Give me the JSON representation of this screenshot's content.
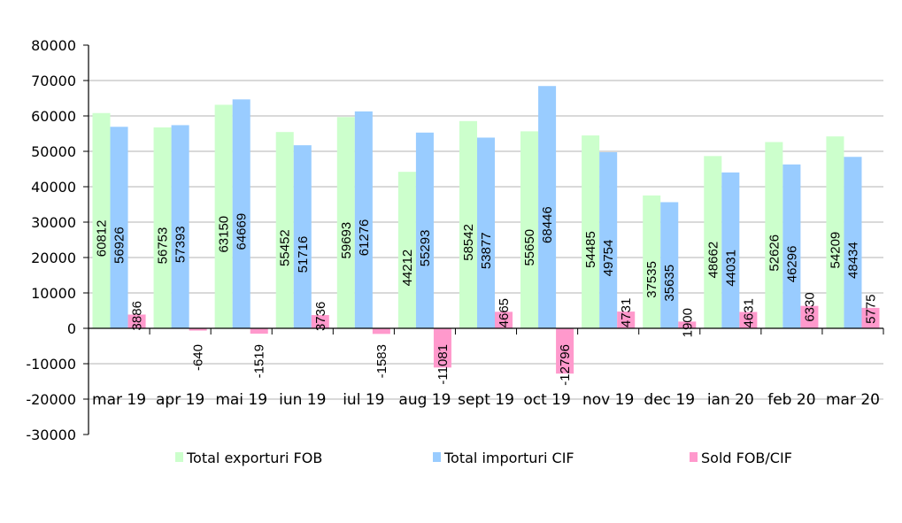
{
  "chart_data": {
    "type": "bar",
    "title": "",
    "xlabel": "",
    "ylabel": "",
    "ylim": [
      -30000,
      80000
    ],
    "yticks": [
      -30000,
      -20000,
      -10000,
      0,
      10000,
      20000,
      30000,
      40000,
      50000,
      60000,
      70000,
      80000
    ],
    "grid": true,
    "legend_position": "bottom",
    "categories": [
      "mar 19",
      "apr 19",
      "mai 19",
      "iun 19",
      "iul 19",
      "aug 19",
      "sept 19",
      "oct 19",
      "nov 19",
      "dec 19",
      "ian 20",
      "feb 20",
      "mar 20"
    ],
    "series": [
      {
        "name": "Total exporturi FOB",
        "color": "#ccffcc",
        "values": [
          60812,
          56753,
          63150,
          55452,
          59693,
          44212,
          58542,
          55650,
          54485,
          37535,
          48662,
          52626,
          54209
        ]
      },
      {
        "name": "Total importuri CIF",
        "color": "#99ccff",
        "values": [
          56926,
          57393,
          64669,
          51716,
          61276,
          55293,
          53877,
          68446,
          49754,
          35635,
          44031,
          46296,
          48434
        ]
      },
      {
        "name": "Sold FOB/CIF",
        "color": "#ff99cc",
        "values": [
          3886,
          -640,
          -1519,
          3736,
          -1583,
          -11081,
          4665,
          -12796,
          4731,
          1900,
          4631,
          6330,
          5775
        ]
      }
    ]
  }
}
